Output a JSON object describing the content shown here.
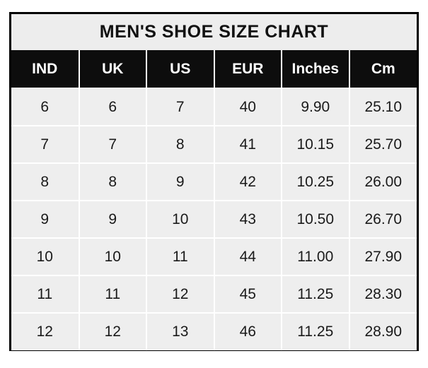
{
  "title": "MEN'S SHOE SIZE CHART",
  "chart_data": {
    "type": "table",
    "title": "MEN'S SHOE SIZE CHART",
    "columns": [
      "IND",
      "UK",
      "US",
      "EUR",
      "Inches",
      "Cm"
    ],
    "rows": [
      [
        "6",
        "6",
        "7",
        "40",
        "9.90",
        "25.10"
      ],
      [
        "7",
        "7",
        "8",
        "41",
        "10.15",
        "25.70"
      ],
      [
        "8",
        "8",
        "9",
        "42",
        "10.25",
        "26.00"
      ],
      [
        "9",
        "9",
        "10",
        "43",
        "10.50",
        "26.70"
      ],
      [
        "10",
        "10",
        "11",
        "44",
        "11.00",
        "27.90"
      ],
      [
        "11",
        "11",
        "12",
        "45",
        "11.25",
        "28.30"
      ],
      [
        "12",
        "12",
        "13",
        "46",
        "11.25",
        "28.90"
      ]
    ],
    "layout": {
      "legend": "none",
      "grid": "white-gridlines-on-gray-cells"
    }
  },
  "colors": {
    "outer_border": "#000000",
    "title_background": "#ededed",
    "title_text": "#111111",
    "header_background": "#0d0d0d",
    "header_text": "#ffffff",
    "cell_background": "#eeeeee",
    "cell_text": "#1a1a1a",
    "gridline": "#ffffff",
    "page_background": "#ffffff"
  }
}
